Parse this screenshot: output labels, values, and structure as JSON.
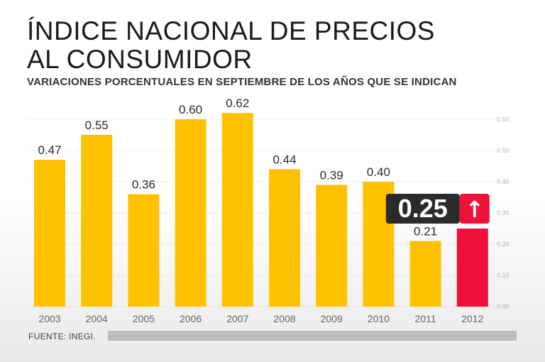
{
  "title_line1": "ÍNDICE NACIONAL DE PRECIOS",
  "title_line2": "AL CONSUMIDOR",
  "subtitle": "VARIACIONES PORCENTUALES EN SEPTIEMBRE DE LOS AÑOS QUE SE INDICAN",
  "source": "FUENTE: INEGI.",
  "colors": {
    "bar": "#FFC200",
    "highlight": "#F0113A",
    "callout_bg": "#2B2B2B",
    "callout_text": "#FFFFFF"
  },
  "chart_data": {
    "type": "bar",
    "title": "ÍNDICE NACIONAL DE PRECIOS AL CONSUMIDOR",
    "subtitle": "VARIACIONES PORCENTUALES EN SEPTIEMBRE DE LOS AÑOS QUE SE INDICAN",
    "categories": [
      "2003",
      "2004",
      "2005",
      "2006",
      "2007",
      "2008",
      "2009",
      "2010",
      "2011",
      "2012"
    ],
    "values": [
      0.47,
      0.55,
      0.36,
      0.6,
      0.62,
      0.44,
      0.39,
      0.4,
      0.21,
      0.25
    ],
    "labels": [
      "0.47",
      "0.55",
      "0.36",
      "0.60",
      "0.62",
      "0.44",
      "0.39",
      "0.40",
      "0.21",
      "0.25"
    ],
    "highlight_index": 9,
    "ylim": [
      0,
      0.6
    ],
    "yticks": [
      0.0,
      0.1,
      0.2,
      0.3,
      0.4,
      0.5,
      0.6
    ],
    "ytick_labels": [
      "0.00",
      "0.10",
      "0.20",
      "0.30",
      "0.40",
      "0.50",
      "0.60"
    ],
    "y_axis_side": "right",
    "grid": true,
    "xlabel": "",
    "ylabel": "",
    "callout": {
      "text": "0.25",
      "arrow": "↑"
    }
  }
}
